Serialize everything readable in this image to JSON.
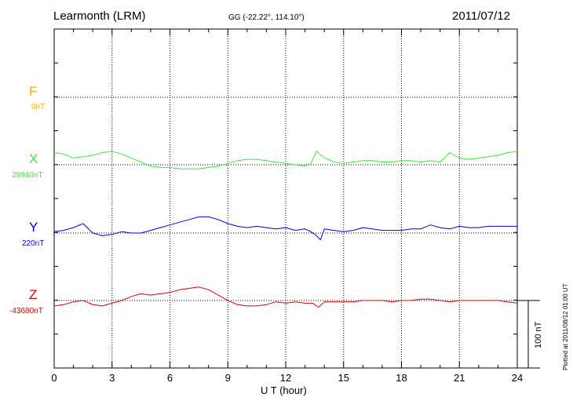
{
  "header": {
    "station": "Learmonth (LRM)",
    "coordinates": "GG (-22.22°, 114.10°)",
    "date": "2011/07/12"
  },
  "footer": {
    "plotted_note": "Plotted at 2011/08/12 01:00 UT"
  },
  "chart_data": {
    "type": "line",
    "xlabel": "U T (hour)",
    "xlim": [
      0,
      24
    ],
    "x_ticks": [
      "0",
      "3",
      "6",
      "9",
      "12",
      "15",
      "18",
      "21",
      "24"
    ],
    "grid": true,
    "scale_bar_label": "100 nT",
    "scale_bar_nT": 100,
    "series": [
      {
        "name": "F",
        "baseline_label": "0nT",
        "color": "#ffaa00",
        "values": []
      },
      {
        "name": "X",
        "baseline_label": "29940nT",
        "color": "#33ee33",
        "x": [
          0,
          0.5,
          1,
          1.5,
          2,
          2.5,
          3,
          3.5,
          4,
          4.5,
          5,
          5.5,
          6,
          6.5,
          7,
          7.5,
          8,
          8.5,
          9,
          9.5,
          10,
          10.5,
          11,
          11.5,
          12,
          12.5,
          13,
          13.3,
          13.6,
          14,
          14.5,
          15,
          15.5,
          16,
          16.5,
          17,
          17.5,
          18,
          18.5,
          19,
          19.5,
          20,
          20.5,
          21,
          21.5,
          22,
          22.5,
          23,
          23.5,
          24
        ],
        "values": [
          18,
          16,
          10,
          12,
          14,
          18,
          20,
          16,
          10,
          4,
          -2,
          -4,
          -4,
          -6,
          -6,
          -6,
          -4,
          -2,
          2,
          6,
          8,
          8,
          6,
          4,
          2,
          0,
          -2,
          2,
          20,
          10,
          4,
          2,
          4,
          6,
          6,
          4,
          4,
          6,
          6,
          4,
          6,
          4,
          18,
          10,
          8,
          10,
          12,
          14,
          18,
          20
        ]
      },
      {
        "name": "Y",
        "baseline_label": "220nT",
        "color": "#0000dd",
        "x": [
          0,
          0.5,
          1,
          1.5,
          2,
          2.5,
          3,
          3.5,
          4,
          4.5,
          5,
          5.5,
          6,
          6.5,
          7,
          7.5,
          8,
          8.5,
          9,
          9.5,
          10,
          10.5,
          11,
          11.5,
          12,
          12.5,
          13,
          13.3,
          13.6,
          13.8,
          14,
          14.5,
          15,
          15.5,
          16,
          16.5,
          17,
          17.5,
          18,
          18.5,
          19,
          19.5,
          20,
          20.5,
          21,
          21.5,
          22,
          22.5,
          23,
          23.5,
          24
        ],
        "values": [
          2,
          4,
          8,
          14,
          0,
          -4,
          -2,
          2,
          0,
          0,
          4,
          8,
          12,
          16,
          20,
          24,
          24,
          20,
          14,
          10,
          8,
          10,
          8,
          6,
          8,
          4,
          6,
          2,
          -4,
          -10,
          6,
          4,
          2,
          4,
          8,
          6,
          4,
          4,
          4,
          6,
          6,
          12,
          8,
          6,
          10,
          8,
          8,
          10,
          10,
          10,
          10
        ]
      },
      {
        "name": "Z",
        "baseline_label": "-43680nT",
        "color": "#dd0000",
        "x": [
          0,
          0.5,
          1,
          1.5,
          2,
          2.5,
          3,
          3.5,
          4,
          4.5,
          5,
          5.5,
          6,
          6.5,
          7,
          7.5,
          8,
          8.5,
          9,
          9.5,
          10,
          10.5,
          11,
          11.5,
          12,
          12.5,
          13,
          13.4,
          13.7,
          14,
          14.5,
          15,
          15.5,
          16,
          16.5,
          17,
          17.5,
          18,
          18.5,
          19,
          19.5,
          20,
          20.5,
          21,
          21.5,
          22,
          22.5,
          23,
          23.5,
          24
        ],
        "values": [
          -8,
          -6,
          -2,
          0,
          -6,
          -8,
          -4,
          0,
          6,
          10,
          8,
          10,
          12,
          16,
          18,
          20,
          16,
          8,
          0,
          -6,
          -8,
          -8,
          -6,
          -2,
          -4,
          -2,
          -4,
          -4,
          -10,
          -2,
          -2,
          -2,
          -2,
          0,
          0,
          0,
          -2,
          0,
          0,
          2,
          2,
          0,
          -2,
          0,
          0,
          0,
          0,
          0,
          -2,
          -4
        ]
      }
    ]
  }
}
